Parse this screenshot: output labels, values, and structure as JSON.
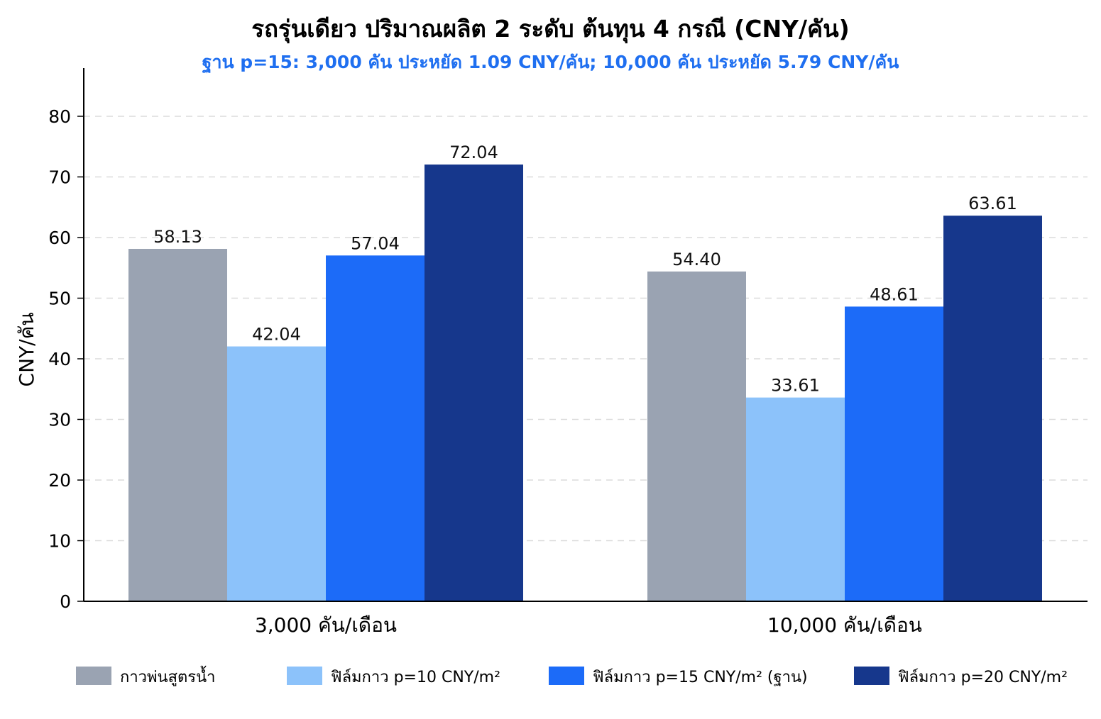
{
  "chart_data": {
    "type": "bar",
    "title": "รถรุ่นเดียว ปริมาณผลิต 2 ระดับ ต้นทุน 4 กรณี (CNY/คัน)",
    "subtitle": "ฐาน p=15: 3,000 คัน ประหยัด 1.09 CNY/คัน; 10,000 คัน ประหยัด 5.79 CNY/คัน",
    "ylabel": "CNY/คัน",
    "xlabel": "",
    "ylim": [
      0,
      80
    ],
    "yticks": [
      0,
      10,
      20,
      30,
      40,
      50,
      60,
      70,
      80
    ],
    "grid": true,
    "legend_position": "bottom",
    "categories": [
      "3,000 คัน/เดือน",
      "10,000 คัน/เดือน"
    ],
    "series": [
      {
        "name": "กาวพ่นสูตรน้ำ",
        "color": "#9aa3b2",
        "values": [
          58.13,
          54.4
        ],
        "labels": [
          "58.13",
          "54.40"
        ]
      },
      {
        "name": "ฟิล์มกาว p=10 CNY/m²",
        "color": "#8cc2fa",
        "values": [
          42.04,
          33.61
        ],
        "labels": [
          "42.04",
          "33.61"
        ]
      },
      {
        "name": "ฟิล์มกาว p=15 CNY/m² (ฐาน)",
        "color": "#1c6bf8",
        "values": [
          57.04,
          48.61
        ],
        "labels": [
          "57.04",
          "48.61"
        ]
      },
      {
        "name": "ฟิล์มกาว p=20 CNY/m²",
        "color": "#16378c",
        "values": [
          72.04,
          63.61
        ],
        "labels": [
          "72.04",
          "63.61"
        ]
      }
    ]
  }
}
